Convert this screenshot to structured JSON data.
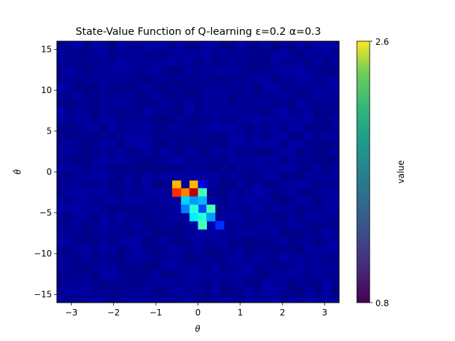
{
  "chart_data": {
    "type": "heatmap",
    "title": "State-Value Function of Q-learning ε=0.2 α=0.3",
    "xlabel": "θ",
    "ylabel": "θ̇",
    "xlim": [
      -3.3416,
      3.3416
    ],
    "ylim": [
      -16,
      16
    ],
    "xticks": [
      -3,
      -2,
      -1,
      0,
      1,
      2,
      3
    ],
    "xtick_labels": [
      "−3",
      "−2",
      "−1",
      "0",
      "1",
      "2",
      "3"
    ],
    "yticks": [
      -15,
      -10,
      -5,
      0,
      5,
      10,
      15
    ],
    "ytick_labels": [
      "−15",
      "−10",
      "−5",
      "0",
      "5",
      "10",
      "15"
    ],
    "grid": false,
    "nx": 33,
    "ny": 32,
    "value_range": [
      0.8,
      2.6
    ],
    "background_value": 0.84,
    "hot_cells": [
      {
        "theta": -0.51,
        "thetadot": -1.5,
        "value": 2.05
      },
      {
        "theta": -0.51,
        "thetadot": -2.5,
        "value": 2.3
      },
      {
        "theta": -0.3,
        "thetadot": -2.5,
        "value": 2.15
      },
      {
        "theta": -0.1,
        "thetadot": -1.5,
        "value": 2.05
      },
      {
        "theta": -0.1,
        "thetadot": -2.5,
        "value": 2.5
      },
      {
        "theta": 0.1,
        "thetadot": -1.5,
        "value": 1.0
      },
      {
        "theta": 0.1,
        "thetadot": -2.5,
        "value": 1.6
      },
      {
        "theta": -0.3,
        "thetadot": -3.5,
        "value": 1.4
      },
      {
        "theta": -0.1,
        "thetadot": -3.5,
        "value": 1.3
      },
      {
        "theta": 0.1,
        "thetadot": -3.5,
        "value": 1.35
      },
      {
        "theta": 0.1,
        "thetadot": -4.5,
        "value": 1.15
      },
      {
        "theta": -0.3,
        "thetadot": -4.5,
        "value": 1.25
      },
      {
        "theta": -0.1,
        "thetadot": -4.5,
        "value": 1.55
      },
      {
        "theta": 0.3,
        "thetadot": -4.5,
        "value": 1.6
      },
      {
        "theta": -0.1,
        "thetadot": -5.5,
        "value": 1.45
      },
      {
        "theta": 0.1,
        "thetadot": -5.5,
        "value": 1.55
      },
      {
        "theta": 0.3,
        "thetadot": -5.5,
        "value": 1.3
      },
      {
        "theta": 0.1,
        "thetadot": -6.5,
        "value": 1.6
      },
      {
        "theta": 0.51,
        "thetadot": -6.5,
        "value": 1.1
      },
      {
        "theta": -0.51,
        "thetadot": -0.5,
        "value": 0.86
      },
      {
        "theta": -0.3,
        "thetadot": -0.5,
        "value": 0.86
      },
      {
        "theta": -0.1,
        "thetadot": -0.5,
        "value": 0.86
      },
      {
        "theta": 0.1,
        "thetadot": -0.5,
        "value": 0.86
      }
    ]
  },
  "colorbar": {
    "label": "value",
    "max_label": "2.6",
    "min_label": "0.8"
  }
}
